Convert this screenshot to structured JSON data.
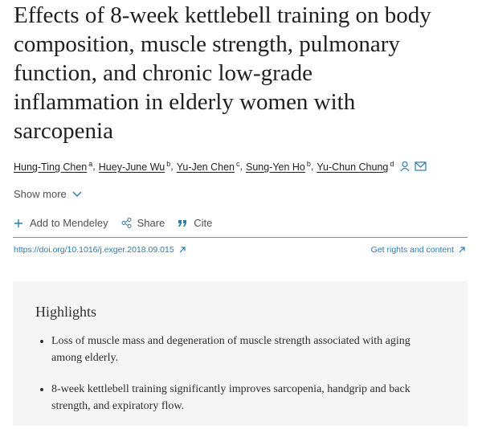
{
  "article": {
    "title_lines": [
      "Effects of 8-week kettlebell training on body",
      "composition, muscle strength, pulmonary",
      "function, and chronic low-grade",
      "inflammation in elderly women with",
      "sarcopenia"
    ],
    "authors": [
      {
        "name": "Hung-Ting Chen",
        "affiliation": "a"
      },
      {
        "name": "Huey-June Wu",
        "affiliation": "b"
      },
      {
        "name": "Yu-Jen Chen",
        "affiliation": "c"
      },
      {
        "name": "Sung-Yen Ho",
        "affiliation": "b"
      },
      {
        "name": "Yu-Chun Chung",
        "affiliation": "d"
      }
    ],
    "author_separator": ",",
    "show_more": "Show more",
    "tools": [
      "Add to Mendeley",
      "Share",
      "Cite"
    ],
    "doi": "https://doi.org/10.1016/j.exger.2018.09.015",
    "rights": "Get rights and content",
    "highlights": {
      "heading": "Highlights",
      "items": [
        "Loss of muscle mass and degeneration of muscle strength associated with aging among elderly.",
        "8-week kettlebell training significantly improves sarcopenia, handgrip and back strength, and expiratory flow."
      ]
    }
  }
}
